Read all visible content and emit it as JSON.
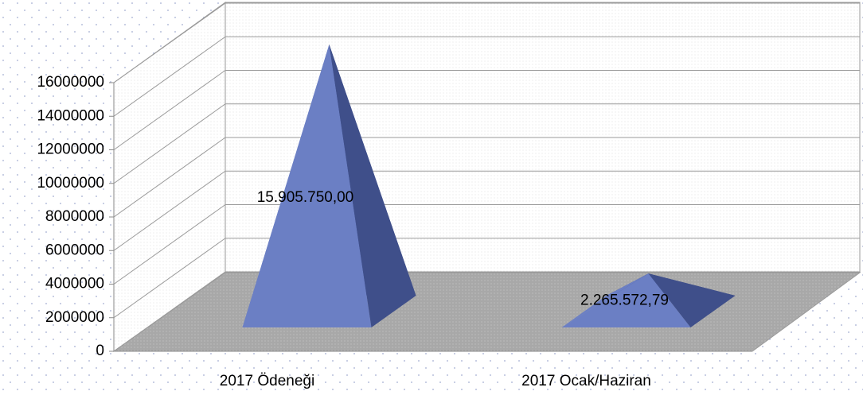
{
  "chart_data": {
    "type": "pyramid3d",
    "categories": [
      "2017 Ödeneği",
      "2017 Ocak/Haziran"
    ],
    "values": [
      15905750,
      2265572.79
    ],
    "value_labels": [
      "15.905.750,00",
      "2.265.572,79"
    ],
    "color": "#6b7fc4",
    "ylim": [
      0,
      16000000
    ],
    "yticks": [
      0,
      2000000,
      4000000,
      6000000,
      8000000,
      10000000,
      12000000,
      14000000,
      16000000
    ],
    "grid": true
  }
}
